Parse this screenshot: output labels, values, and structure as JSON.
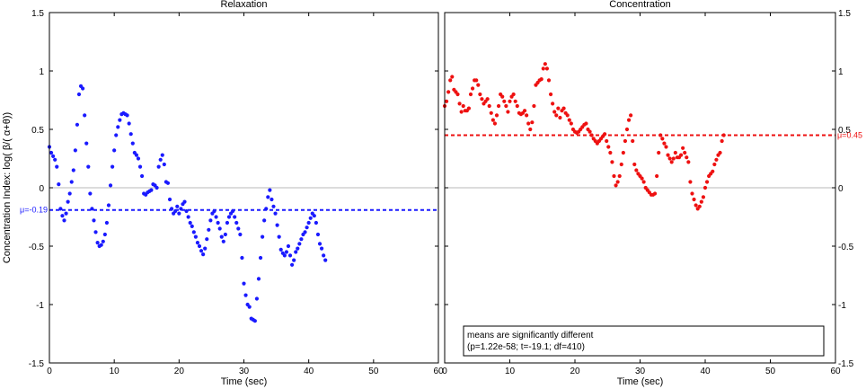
{
  "chart_data": [
    {
      "type": "scatter",
      "title": "Relaxation",
      "xlabel": "Time (sec)",
      "ylabel": "Concentration Index:  log( β/( α+θ))",
      "xlim": [
        0,
        60
      ],
      "ylim": [
        -1.5,
        1.5
      ],
      "xticks": [
        "0",
        "10",
        "20",
        "30",
        "40",
        "50",
        "60"
      ],
      "yticks": [
        "-1.5",
        "-1",
        "-0.5",
        "0",
        "0.5",
        "1",
        "1.5"
      ],
      "color": "#1a1aff",
      "mean": -0.19,
      "mean_label": "μ=-0.19",
      "x_start": 0,
      "x_step": 0.2857,
      "values": [
        0.35,
        0.3,
        0.27,
        0.24,
        0.18,
        0.03,
        -0.18,
        -0.24,
        -0.28,
        -0.22,
        -0.12,
        -0.05,
        0.05,
        0.15,
        0.32,
        0.54,
        0.8,
        0.87,
        0.85,
        0.62,
        0.38,
        0.18,
        -0.05,
        -0.18,
        -0.28,
        -0.38,
        -0.47,
        -0.5,
        -0.49,
        -0.46,
        -0.4,
        -0.3,
        -0.15,
        0.02,
        0.18,
        0.32,
        0.45,
        0.52,
        0.58,
        0.63,
        0.64,
        0.63,
        0.62,
        0.55,
        0.46,
        0.38,
        0.3,
        0.28,
        0.25,
        0.18,
        0.1,
        -0.05,
        -0.06,
        -0.04,
        -0.03,
        -0.02,
        0.03,
        0.02,
        0.0,
        0.18,
        0.24,
        0.28,
        0.2,
        0.05,
        0.04,
        -0.1,
        -0.18,
        -0.22,
        -0.2,
        -0.16,
        -0.22,
        -0.18,
        -0.14,
        -0.12,
        -0.2,
        -0.25,
        -0.3,
        -0.33,
        -0.38,
        -0.42,
        -0.47,
        -0.5,
        -0.54,
        -0.57,
        -0.52,
        -0.44,
        -0.36,
        -0.28,
        -0.22,
        -0.2,
        -0.25,
        -0.3,
        -0.35,
        -0.42,
        -0.46,
        -0.4,
        -0.3,
        -0.25,
        -0.22,
        -0.2,
        -0.25,
        -0.3,
        -0.35,
        -0.4,
        -0.6,
        -0.82,
        -0.92,
        -1.0,
        -1.02,
        -1.12,
        -1.13,
        -1.14,
        -0.95,
        -0.78,
        -0.6,
        -0.42,
        -0.28,
        -0.18,
        -0.08,
        -0.02,
        -0.1,
        -0.16,
        -0.22,
        -0.32,
        -0.42,
        -0.53,
        -0.56,
        -0.58,
        -0.55,
        -0.5,
        -0.58,
        -0.66,
        -0.62,
        -0.55,
        -0.52,
        -0.48,
        -0.44,
        -0.4,
        -0.38,
        -0.34,
        -0.3,
        -0.26,
        -0.22,
        -0.24,
        -0.3,
        -0.4,
        -0.48,
        -0.52,
        -0.58,
        -0.62
      ]
    },
    {
      "type": "scatter",
      "title": "Concentration",
      "xlabel": "Time (sec)",
      "xlim": [
        0,
        60
      ],
      "ylim": [
        -1.5,
        1.5
      ],
      "xticks": [
        "0",
        "10",
        "20",
        "30",
        "40",
        "50",
        "60"
      ],
      "yticks": [
        "-1.5",
        "-1",
        "-0.5",
        "0",
        "0.5",
        "1",
        "1.5"
      ],
      "color": "#ee1111",
      "mean": 0.45,
      "mean_label": "μ=0.45",
      "annotation": {
        "line1": "means are significantly different",
        "line2": "(p=1.22e-58; t=-19.1; df=410)"
      },
      "x_start": 0,
      "x_step": 0.2857,
      "values": [
        0.7,
        0.74,
        0.82,
        0.92,
        0.95,
        0.84,
        0.82,
        0.8,
        0.72,
        0.65,
        0.7,
        0.66,
        0.66,
        0.68,
        0.8,
        0.85,
        0.92,
        0.92,
        0.88,
        0.8,
        0.76,
        0.72,
        0.74,
        0.76,
        0.7,
        0.64,
        0.58,
        0.55,
        0.62,
        0.7,
        0.8,
        0.78,
        0.74,
        0.7,
        0.65,
        0.74,
        0.78,
        0.8,
        0.74,
        0.7,
        0.64,
        0.63,
        0.64,
        0.66,
        0.62,
        0.55,
        0.5,
        0.56,
        0.7,
        0.88,
        0.9,
        0.92,
        0.93,
        1.02,
        1.06,
        1.02,
        0.92,
        0.8,
        0.72,
        0.65,
        0.62,
        0.68,
        0.6,
        0.66,
        0.68,
        0.64,
        0.62,
        0.58,
        0.55,
        0.5,
        0.48,
        0.47,
        0.48,
        0.5,
        0.52,
        0.54,
        0.55,
        0.5,
        0.48,
        0.45,
        0.42,
        0.4,
        0.38,
        0.4,
        0.42,
        0.44,
        0.46,
        0.4,
        0.35,
        0.3,
        0.22,
        0.1,
        0.02,
        0.05,
        0.1,
        0.2,
        0.3,
        0.4,
        0.5,
        0.58,
        0.62,
        0.4,
        0.2,
        0.15,
        0.12,
        0.1,
        0.08,
        0.05,
        0.0,
        -0.02,
        -0.04,
        -0.06,
        -0.06,
        -0.05,
        0.1,
        0.3,
        0.45,
        0.42,
        0.38,
        0.35,
        0.28,
        0.25,
        0.22,
        0.25,
        0.3,
        0.26,
        0.26,
        0.28,
        0.34,
        0.3,
        0.26,
        0.22,
        0.05,
        -0.05,
        -0.1,
        -0.15,
        -0.18,
        -0.16,
        -0.12,
        -0.08,
        0.0,
        0.05,
        0.1,
        0.12,
        0.14,
        0.2,
        0.24,
        0.28,
        0.3,
        0.4,
        0.45
      ]
    }
  ]
}
